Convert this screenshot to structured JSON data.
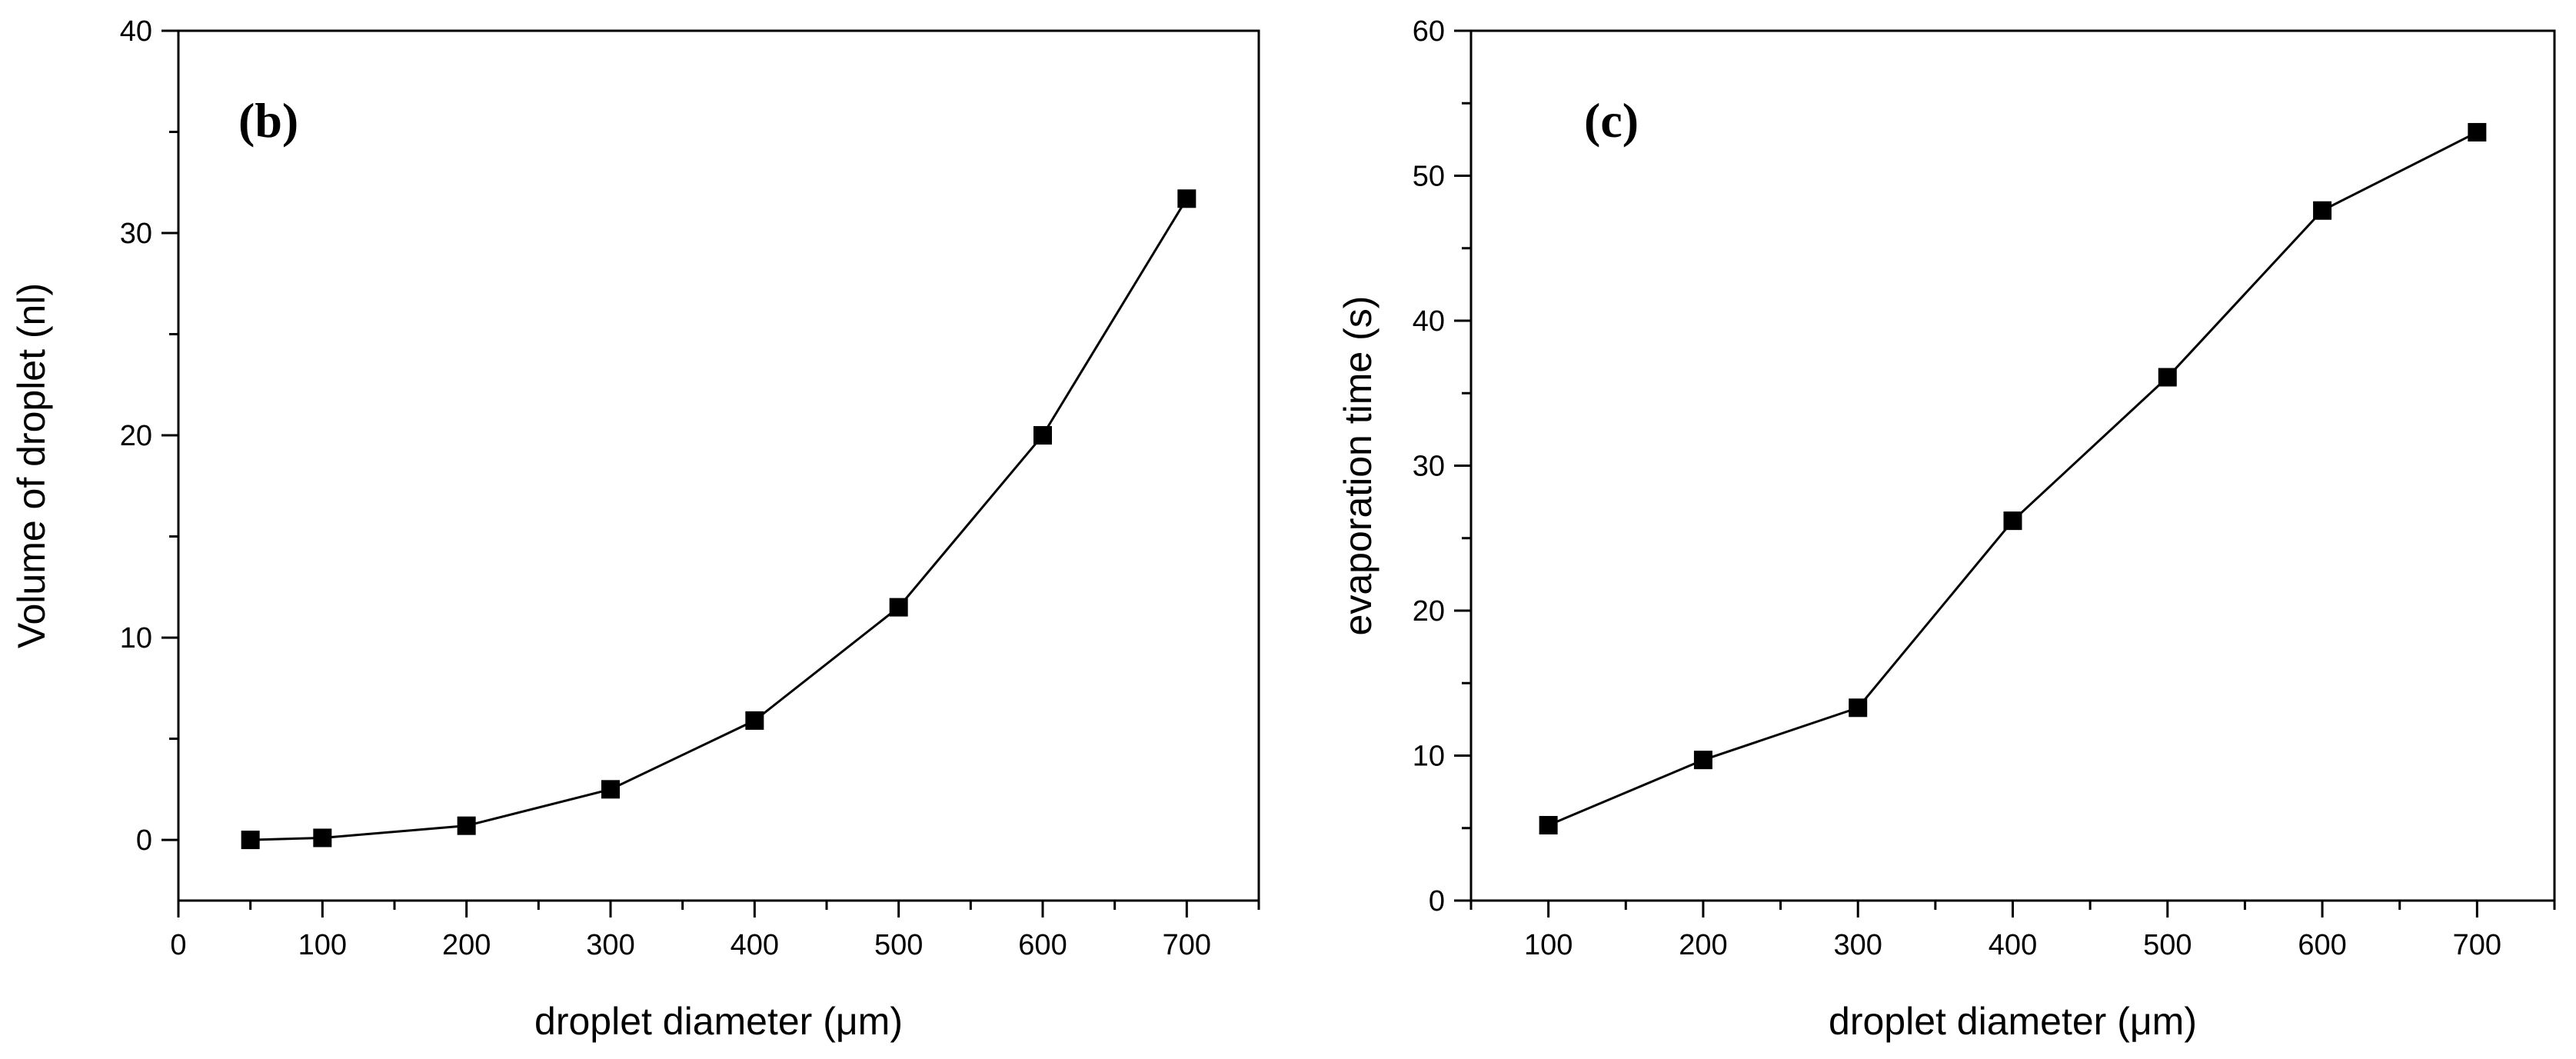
{
  "chart_data": [
    {
      "type": "line",
      "panel_label": "(b)",
      "title": "",
      "xlabel": "droplet diameter (μm)",
      "ylabel": "Volume of droplet (nl)",
      "xlim": [
        0,
        750
      ],
      "ylim": [
        -3,
        40
      ],
      "xticks": [
        0,
        100,
        200,
        300,
        400,
        500,
        600,
        700
      ],
      "yticks": [
        0,
        10,
        20,
        30,
        40
      ],
      "x_minor_step": 50,
      "y_minor_step": 5,
      "grid": false,
      "marker": "square",
      "series": [
        {
          "name": "Volume of droplet",
          "x": [
            50,
            100,
            200,
            300,
            400,
            500,
            600,
            700
          ],
          "y": [
            0.0,
            0.1,
            0.7,
            2.5,
            5.9,
            11.5,
            20.0,
            31.7
          ],
          "color": "#000000"
        }
      ]
    },
    {
      "type": "line",
      "panel_label": "(c)",
      "title": "",
      "xlabel": "droplet diameter (μm)",
      "ylabel": "evaporation time (s)",
      "xlim": [
        50,
        750
      ],
      "ylim": [
        0,
        60
      ],
      "xticks": [
        100,
        200,
        300,
        400,
        500,
        600,
        700
      ],
      "yticks": [
        0,
        10,
        20,
        30,
        40,
        50,
        60
      ],
      "x_minor_step": 50,
      "y_minor_step": 5,
      "grid": false,
      "marker": "square",
      "series": [
        {
          "name": "evaporation time",
          "x": [
            100,
            200,
            300,
            400,
            500,
            600,
            700
          ],
          "y": [
            5.2,
            9.7,
            13.3,
            26.2,
            36.1,
            47.6,
            53.0
          ],
          "color": "#000000"
        }
      ]
    }
  ]
}
